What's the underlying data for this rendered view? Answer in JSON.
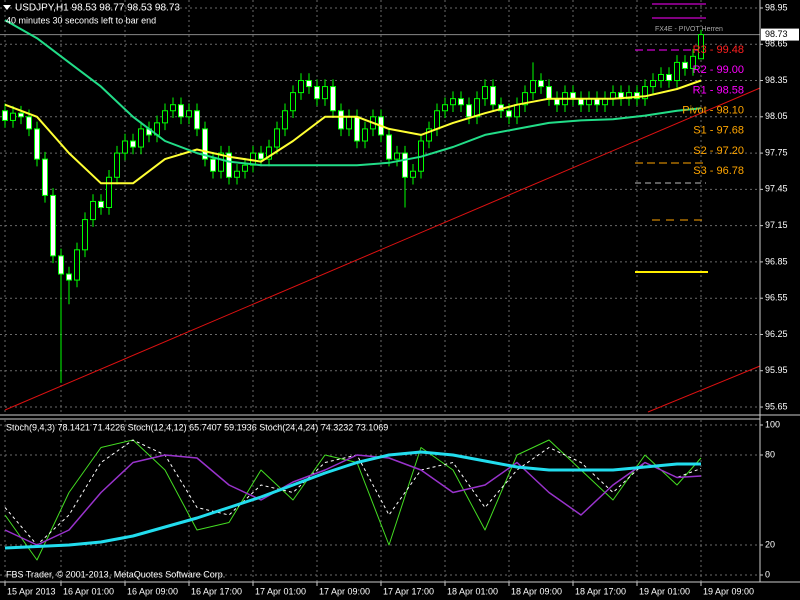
{
  "header": {
    "symbol_line": "USDJPY,H1  98.53 98.77 98.53 98.73",
    "countdown": "40 minutes 30 seconds left to bar end",
    "footer": "FBS Trader, © 2001-2013, MetaQuotes Software Corp."
  },
  "pivot_panel": {
    "title": "FX4E - PIVOT Herren",
    "levels": [
      {
        "label": "R3 - 99.48",
        "color": "#ff2020"
      },
      {
        "label": "R2 - 99.00",
        "color": "#ff00ff"
      },
      {
        "label": "R1 - 98.58",
        "color": "#ff00ff"
      },
      {
        "label": "Pivot - 98.10",
        "color": "#ffa500"
      },
      {
        "label": "S1 - 97.68",
        "color": "#ffa500"
      },
      {
        "label": "S2 - 97.20",
        "color": "#ffa500"
      },
      {
        "label": "S3 - 96.78",
        "color": "#ffa500"
      }
    ]
  },
  "chart_data": [
    {
      "type": "candlestick",
      "up_color": "#00ff00",
      "open": [
        98.1,
        98.02,
        98.08,
        98.05,
        97.95,
        97.7,
        97.4,
        96.9,
        96.75,
        96.7,
        96.95,
        97.2,
        97.35,
        97.3,
        97.55,
        97.75,
        97.85,
        97.8,
        97.95,
        97.9,
        98.0,
        98.1,
        98.15,
        98.05,
        98.1,
        97.95,
        97.7,
        97.6,
        97.75,
        97.55,
        97.6,
        97.65,
        97.75,
        97.7,
        97.8,
        97.95,
        98.1,
        98.25,
        98.35,
        98.3,
        98.2,
        98.3,
        98.1,
        97.95,
        98.05,
        97.85,
        97.95,
        98.05,
        97.9,
        97.7,
        97.75,
        97.55,
        97.6,
        97.85,
        97.95,
        98.1,
        98.15,
        98.2,
        98.15,
        98.05,
        98.2,
        98.3,
        98.15,
        98.1,
        98.05,
        98.15,
        98.25,
        98.35,
        98.3,
        98.2,
        98.15,
        98.25,
        98.2,
        98.15,
        98.2,
        98.15,
        98.2,
        98.25,
        98.2,
        98.25,
        98.2,
        98.3,
        98.35,
        98.4,
        98.35,
        98.5,
        98.45,
        98.53
      ],
      "high": [
        98.16,
        98.14,
        98.14,
        98.11,
        98.01,
        97.76,
        97.46,
        96.96,
        96.81,
        97.01,
        97.26,
        97.41,
        97.41,
        97.61,
        97.81,
        97.91,
        97.91,
        98.01,
        98.01,
        98.06,
        98.16,
        98.21,
        98.21,
        98.16,
        98.16,
        98.01,
        97.76,
        97.81,
        97.81,
        97.66,
        97.71,
        97.81,
        97.81,
        97.86,
        98.01,
        98.16,
        98.31,
        98.41,
        98.41,
        98.36,
        98.36,
        98.36,
        98.16,
        98.11,
        98.11,
        98.01,
        98.11,
        98.11,
        97.96,
        97.81,
        97.81,
        97.66,
        97.91,
        98.01,
        98.16,
        98.21,
        98.26,
        98.26,
        98.21,
        98.26,
        98.36,
        98.36,
        98.21,
        98.16,
        98.21,
        98.31,
        98.5,
        98.41,
        98.36,
        98.26,
        98.31,
        98.31,
        98.26,
        98.26,
        98.26,
        98.26,
        98.31,
        98.31,
        98.31,
        98.31,
        98.36,
        98.41,
        98.46,
        98.46,
        98.56,
        98.56,
        98.61,
        98.77
      ],
      "low": [
        97.96,
        97.96,
        97.99,
        97.89,
        97.64,
        97.34,
        96.84,
        95.85,
        96.5,
        96.64,
        96.89,
        97.14,
        97.24,
        97.24,
        97.49,
        97.69,
        97.74,
        97.74,
        97.84,
        97.84,
        97.94,
        98.04,
        97.99,
        97.99,
        97.89,
        97.64,
        97.54,
        97.54,
        97.49,
        97.49,
        97.54,
        97.59,
        97.64,
        97.64,
        97.74,
        97.89,
        98.04,
        98.19,
        98.24,
        98.14,
        98.14,
        98.04,
        97.89,
        97.89,
        97.79,
        97.79,
        97.89,
        97.84,
        97.64,
        97.64,
        97.3,
        97.49,
        97.54,
        97.79,
        97.89,
        98.04,
        98.09,
        98.09,
        97.99,
        97.99,
        98.14,
        98.09,
        98.04,
        97.99,
        97.99,
        98.09,
        98.19,
        98.24,
        98.14,
        98.09,
        98.09,
        98.14,
        98.09,
        98.09,
        98.09,
        98.09,
        98.14,
        98.14,
        98.14,
        98.14,
        98.14,
        98.24,
        98.29,
        98.29,
        98.29,
        98.39,
        98.39,
        98.53
      ],
      "close": [
        98.02,
        98.08,
        98.05,
        97.95,
        97.7,
        97.4,
        96.9,
        96.75,
        96.7,
        96.95,
        97.2,
        97.35,
        97.3,
        97.55,
        97.75,
        97.85,
        97.8,
        97.95,
        97.9,
        98.0,
        98.1,
        98.15,
        98.05,
        98.1,
        97.95,
        97.7,
        97.6,
        97.75,
        97.55,
        97.6,
        97.65,
        97.75,
        97.7,
        97.8,
        97.95,
        98.1,
        98.25,
        98.35,
        98.3,
        98.2,
        98.3,
        98.1,
        97.95,
        98.05,
        97.85,
        97.95,
        98.05,
        97.9,
        97.7,
        97.75,
        97.55,
        97.6,
        97.85,
        97.95,
        98.1,
        98.15,
        98.2,
        98.15,
        98.05,
        98.2,
        98.3,
        98.15,
        98.1,
        98.05,
        98.15,
        98.25,
        98.35,
        98.3,
        98.2,
        98.15,
        98.25,
        98.2,
        98.15,
        98.2,
        98.15,
        98.2,
        98.25,
        98.2,
        98.25,
        98.2,
        98.3,
        98.35,
        98.4,
        98.35,
        98.5,
        98.45,
        98.55,
        98.73
      ],
      "series": [
        {
          "color": "#ffff33",
          "x": [
            0,
            4,
            8,
            12,
            16,
            20,
            24,
            28,
            32,
            36,
            40,
            44,
            48,
            52,
            56,
            60,
            64,
            68,
            72,
            76,
            80,
            84,
            87
          ],
          "values": [
            98.15,
            98.05,
            97.75,
            97.5,
            97.5,
            97.7,
            97.78,
            97.72,
            97.68,
            97.85,
            98.05,
            98.05,
            97.95,
            97.9,
            98.0,
            98.08,
            98.15,
            98.2,
            98.2,
            98.2,
            98.22,
            98.28,
            98.35
          ]
        },
        {
          "color": "#22dd88",
          "x": [
            0,
            4,
            8,
            12,
            16,
            20,
            24,
            28,
            32,
            36,
            40,
            44,
            48,
            52,
            56,
            60,
            64,
            68,
            72,
            76,
            80,
            84,
            87
          ],
          "values": [
            98.85,
            98.7,
            98.5,
            98.3,
            98.05,
            97.85,
            97.75,
            97.68,
            97.65,
            97.65,
            97.65,
            97.65,
            97.67,
            97.72,
            97.8,
            97.9,
            97.95,
            98.0,
            98.02,
            98.03,
            98.06,
            98.1,
            98.12
          ]
        }
      ],
      "xlim": [
        -0.625,
        94.375
      ],
      "ylim": [
        95.584,
        99.016
      ],
      "yticks": [
        98.95,
        98.65,
        98.35,
        98.05,
        97.75,
        97.45,
        97.15,
        96.85,
        96.55,
        96.25,
        95.95,
        95.65
      ],
      "grid": true
    },
    {
      "type": "line",
      "title": "Stoch(9,4,3) 78.1421 71.4226  Stoch(12,4,12) 65.7407 59.1936  Stoch(24,4,24) 74.3232 73.1069",
      "series": [
        {
          "color": "#44dd22",
          "width": 1,
          "x": [
            0,
            4,
            8,
            12,
            16,
            20,
            24,
            28,
            32,
            36,
            40,
            44,
            48,
            52,
            56,
            60,
            64,
            68,
            72,
            76,
            80,
            84,
            87
          ],
          "values": [
            40,
            10,
            55,
            85,
            90,
            70,
            30,
            35,
            70,
            50,
            80,
            75,
            20,
            85,
            70,
            30,
            80,
            90,
            70,
            50,
            80,
            60,
            78
          ]
        },
        {
          "color": "#ffffff",
          "width": 1,
          "dash": true,
          "x": [
            0,
            4,
            8,
            12,
            16,
            20,
            24,
            28,
            32,
            36,
            40,
            44,
            48,
            52,
            56,
            60,
            64,
            68,
            72,
            76,
            80,
            84,
            87
          ],
          "values": [
            45,
            20,
            40,
            75,
            90,
            80,
            45,
            40,
            60,
            55,
            75,
            80,
            40,
            70,
            75,
            45,
            70,
            85,
            75,
            55,
            75,
            65,
            71
          ]
        },
        {
          "color": "#9933cc",
          "width": 1.5,
          "x": [
            0,
            4,
            8,
            12,
            16,
            20,
            24,
            28,
            32,
            36,
            40,
            44,
            48,
            52,
            56,
            60,
            64,
            68,
            72,
            76,
            80,
            84,
            87
          ],
          "values": [
            30,
            20,
            30,
            55,
            75,
            80,
            78,
            60,
            50,
            62,
            70,
            80,
            78,
            70,
            55,
            60,
            75,
            55,
            40,
            60,
            75,
            65,
            66
          ]
        },
        {
          "color": "#22ddee",
          "width": 3,
          "x": [
            0,
            4,
            8,
            12,
            16,
            20,
            24,
            28,
            32,
            36,
            40,
            44,
            48,
            52,
            56,
            60,
            64,
            68,
            72,
            76,
            80,
            84,
            87
          ],
          "values": [
            18,
            19,
            20,
            22,
            26,
            32,
            38,
            45,
            52,
            60,
            68,
            75,
            80,
            82,
            80,
            76,
            72,
            70,
            70,
            70,
            72,
            74,
            74
          ]
        }
      ],
      "xlim": [
        -0.625,
        94.375
      ],
      "ylim": [
        -4.67,
        103.33
      ],
      "yticks": [
        100,
        80,
        20,
        0
      ],
      "xticks": [
        {
          "value": 0,
          "label": "15 Apr 2013"
        },
        {
          "value": 7,
          "label": "16 Apr 01:00"
        },
        {
          "value": 15,
          "label": "16 Apr 09:00"
        },
        {
          "value": 23,
          "label": "16 Apr 17:00"
        },
        {
          "value": 31,
          "label": "17 Apr 01:00"
        },
        {
          "value": 39,
          "label": "17 Apr 09:00"
        },
        {
          "value": 47,
          "label": "17 Apr 17:00"
        },
        {
          "value": 55,
          "label": "18 Apr 01:00"
        },
        {
          "value": 63,
          "label": "18 Apr 09:00"
        },
        {
          "value": 71,
          "label": "18 Apr 17:00"
        },
        {
          "value": 79,
          "label": "19 Apr 01:00"
        },
        {
          "value": 87,
          "label": "19 Apr 09:00"
        }
      ],
      "grid": true
    }
  ]
}
